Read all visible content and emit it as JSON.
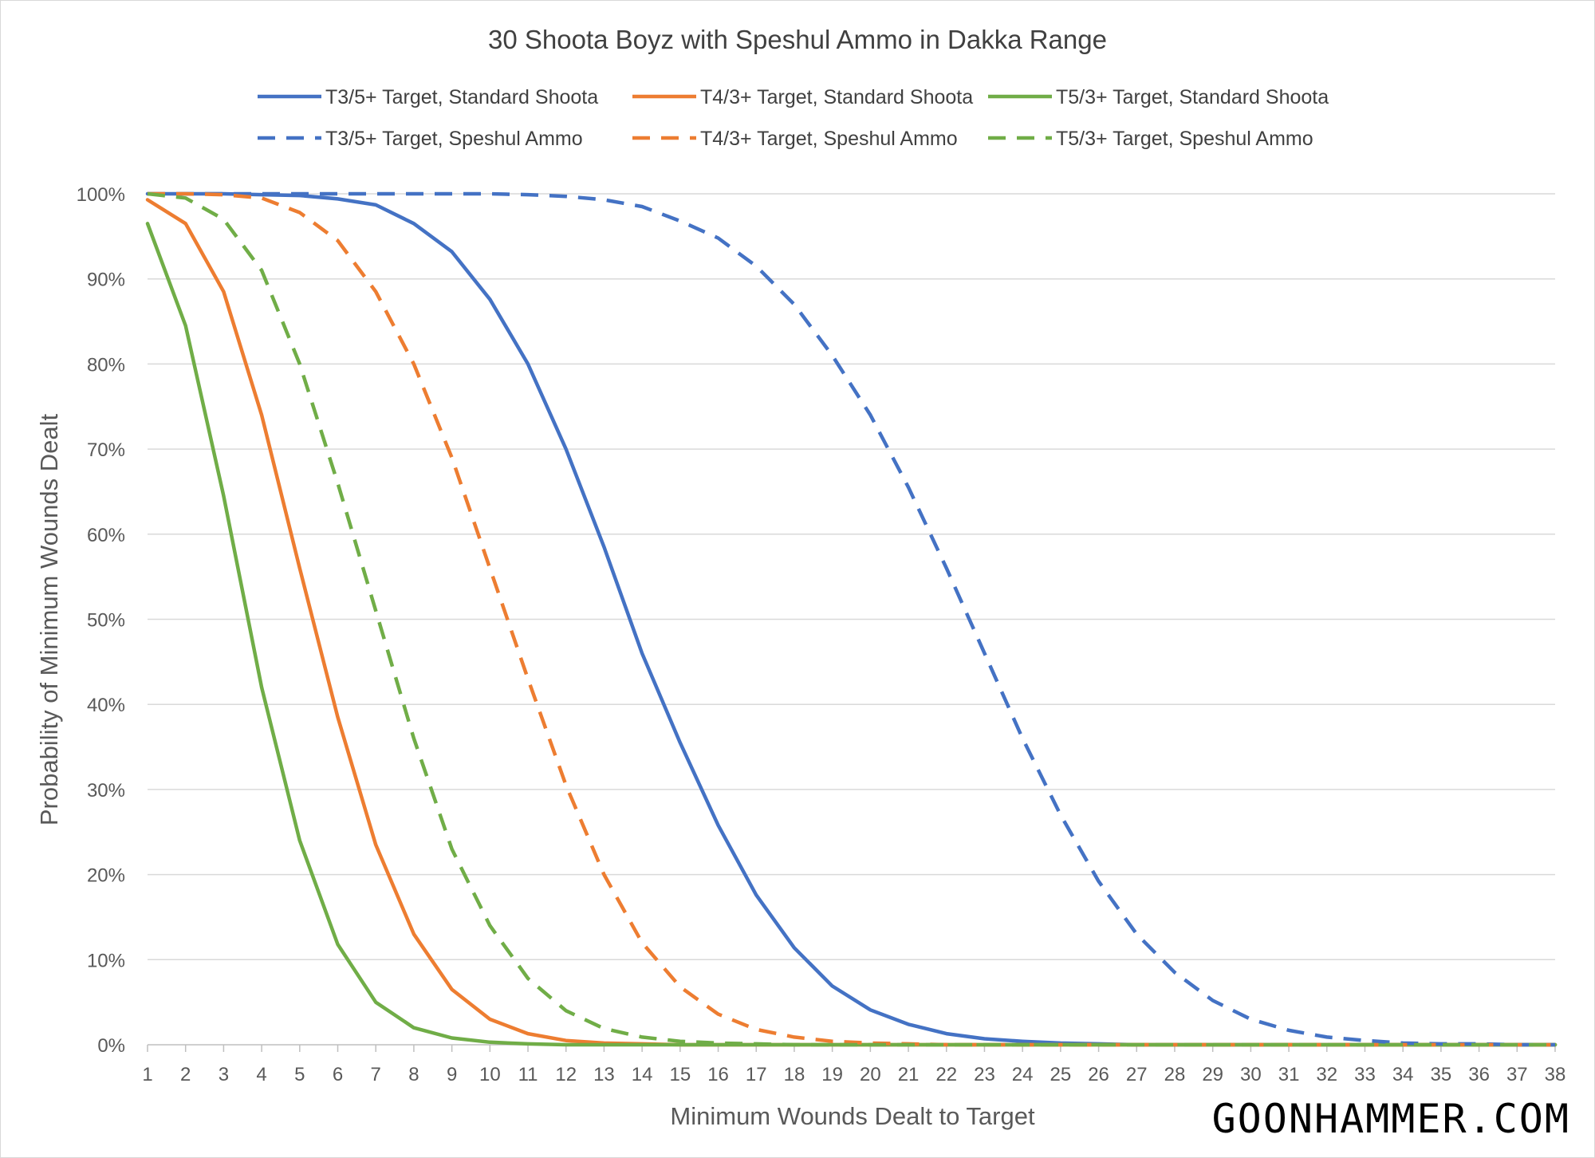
{
  "chart_data": {
    "type": "line",
    "title": "30 Shoota Boyz with Speshul Ammo in Dakka Range",
    "xlabel": "Minimum Wounds Dealt to Target",
    "ylabel": "Probability of Minimum Wounds Dealt",
    "x": [
      1,
      2,
      3,
      4,
      5,
      6,
      7,
      8,
      9,
      10,
      11,
      12,
      13,
      14,
      15,
      16,
      17,
      18,
      19,
      20,
      21,
      22,
      23,
      24,
      25,
      26,
      27,
      28,
      29,
      30,
      31,
      32,
      33,
      34,
      35,
      36,
      37,
      38
    ],
    "xlim": [
      1,
      38
    ],
    "ylim": [
      0,
      1
    ],
    "y_ticks": [
      "0%",
      "10%",
      "20%",
      "30%",
      "40%",
      "50%",
      "60%",
      "70%",
      "80%",
      "90%",
      "100%"
    ],
    "grid": true,
    "legend_position": "top",
    "series": [
      {
        "name": "T3/5+ Target, Standard Shoota",
        "color": "#4472C4",
        "dash": "solid",
        "values": [
          1.0,
          1.0,
          1.0,
          0.999,
          0.998,
          0.994,
          0.987,
          0.965,
          0.932,
          0.876,
          0.8,
          0.7,
          0.585,
          0.46,
          0.355,
          0.258,
          0.176,
          0.114,
          0.069,
          0.041,
          0.024,
          0.013,
          0.007,
          0.004,
          0.002,
          0.001,
          0,
          0,
          0,
          0,
          0,
          0,
          0,
          0,
          0,
          0,
          0,
          0
        ]
      },
      {
        "name": "T4/3+ Target, Standard Shoota",
        "color": "#ED7D31",
        "dash": "solid",
        "values": [
          0.993,
          0.965,
          0.885,
          0.74,
          0.56,
          0.385,
          0.235,
          0.13,
          0.065,
          0.03,
          0.013,
          0.005,
          0.002,
          0.001,
          0,
          0,
          0,
          0,
          0,
          0,
          0,
          0,
          0,
          0,
          0,
          0,
          0,
          0,
          0,
          0,
          0,
          0,
          0,
          0,
          0,
          0,
          0,
          0
        ]
      },
      {
        "name": "T5/3+ Target, Standard Shoota",
        "color": "#70AD47",
        "dash": "solid",
        "values": [
          0.965,
          0.845,
          0.645,
          0.42,
          0.24,
          0.118,
          0.05,
          0.02,
          0.008,
          0.003,
          0.001,
          0,
          0,
          0,
          0,
          0,
          0,
          0,
          0,
          0,
          0,
          0,
          0,
          0,
          0,
          0,
          0,
          0,
          0,
          0,
          0,
          0,
          0,
          0,
          0,
          0,
          0,
          0
        ]
      },
      {
        "name": "T3/5+ Target, Speshul Ammo",
        "color": "#4472C4",
        "dash": "dashed",
        "values": [
          1.0,
          1.0,
          1.0,
          1.0,
          1.0,
          1.0,
          1.0,
          1.0,
          1.0,
          1.0,
          0.999,
          0.997,
          0.993,
          0.985,
          0.968,
          0.948,
          0.915,
          0.87,
          0.81,
          0.74,
          0.655,
          0.56,
          0.46,
          0.36,
          0.27,
          0.192,
          0.13,
          0.085,
          0.052,
          0.03,
          0.017,
          0.009,
          0.005,
          0.002,
          0.001,
          0.001,
          0,
          0
        ]
      },
      {
        "name": "T4/3+ Target, Speshul Ammo",
        "color": "#ED7D31",
        "dash": "dashed",
        "values": [
          1.0,
          1.0,
          0.999,
          0.995,
          0.978,
          0.945,
          0.885,
          0.8,
          0.69,
          0.56,
          0.43,
          0.305,
          0.2,
          0.12,
          0.068,
          0.036,
          0.018,
          0.009,
          0.004,
          0.002,
          0.001,
          0,
          0,
          0,
          0,
          0,
          0,
          0,
          0,
          0,
          0,
          0,
          0,
          0,
          0,
          0,
          0,
          0
        ]
      },
      {
        "name": "T5/3+ Target, Speshul Ammo",
        "color": "#70AD47",
        "dash": "dashed",
        "values": [
          1.0,
          0.995,
          0.97,
          0.91,
          0.8,
          0.66,
          0.51,
          0.36,
          0.23,
          0.14,
          0.078,
          0.04,
          0.019,
          0.009,
          0.004,
          0.002,
          0.001,
          0,
          0,
          0,
          0,
          0,
          0,
          0,
          0,
          0,
          0,
          0,
          0,
          0,
          0,
          0,
          0,
          0,
          0,
          0,
          0,
          0
        ]
      }
    ]
  },
  "brand": "GOONHAMMER.COM"
}
